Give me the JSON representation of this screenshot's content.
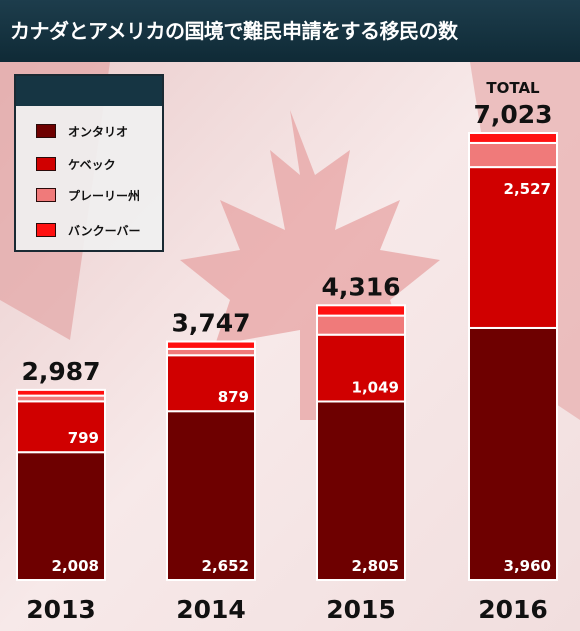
{
  "header": {
    "title": "カナダとアメリカの国境で難民申請をする移民の数"
  },
  "colors": {
    "ontario": "#6e0000",
    "quebec": "#d00000",
    "prairie": "#f07a7a",
    "vancouver": "#ff1010",
    "header_bg": "#163543"
  },
  "chart_data": {
    "type": "bar",
    "stacked": true,
    "categories": [
      "2013",
      "2014",
      "2015",
      "2016"
    ],
    "series": [
      {
        "name": "オンタリオ",
        "values": [
          2008,
          2652,
          2805,
          3960
        ],
        "color": "#6e0000"
      },
      {
        "name": "ケベック",
        "values": [
          799,
          879,
          1049,
          2527
        ],
        "color": "#d00000"
      },
      {
        "name": "プレーリー州",
        "values": [
          90,
          100,
          300,
          380
        ],
        "color": "#f07a7a"
      },
      {
        "name": "バンクーバー",
        "values": [
          90,
          116,
          162,
          156
        ],
        "color": "#ff1010"
      }
    ],
    "totals": [
      "2,987",
      "3,747",
      "4,316",
      "7,023"
    ],
    "total_label": "TOTAL",
    "segment_labels": [
      [
        "2,008",
        "799"
      ],
      [
        "2,652",
        "879"
      ],
      [
        "2,805",
        "1,049"
      ],
      [
        "3,960",
        "2,527"
      ]
    ],
    "ylim": [
      0,
      7023
    ],
    "legend_position": "top-left",
    "grid": false
  }
}
